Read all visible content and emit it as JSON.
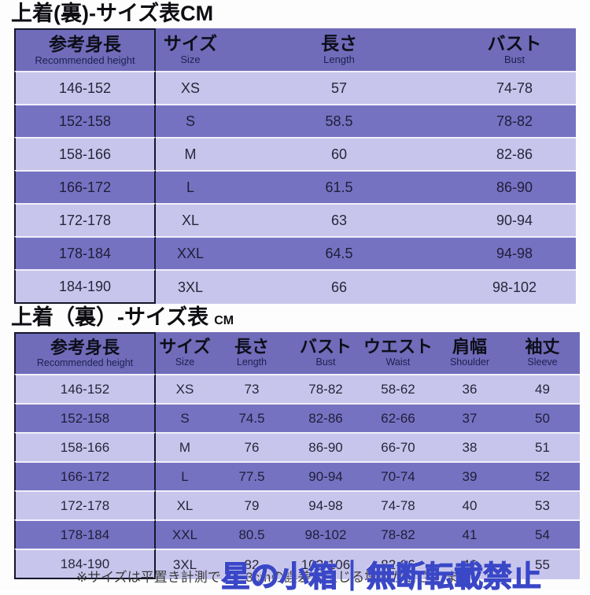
{
  "table1": {
    "title": "上着(裏)-サイズ表CM",
    "columns": [
      {
        "ja": "参考身長",
        "en": "Recommended height"
      },
      {
        "ja": "サイズ",
        "en": "Size"
      },
      {
        "ja": "長さ",
        "en": "Length"
      },
      {
        "ja": "バスト",
        "en": "Bust"
      }
    ],
    "rows": [
      [
        "146-152",
        "XS",
        "57",
        "74-78"
      ],
      [
        "152-158",
        "S",
        "58.5",
        "78-82"
      ],
      [
        "158-166",
        "M",
        "60",
        "82-86"
      ],
      [
        "166-172",
        "L",
        "61.5",
        "86-90"
      ],
      [
        "172-178",
        "XL",
        "63",
        "90-94"
      ],
      [
        "178-184",
        "XXL",
        "64.5",
        "94-98"
      ],
      [
        "184-190",
        "3XL",
        "66",
        "98-102"
      ]
    ]
  },
  "table2": {
    "title": "上着（裏）-サイズ表",
    "title_unit": "CM",
    "columns": [
      {
        "ja": "参考身長",
        "en": "Recommended height"
      },
      {
        "ja": "サイズ",
        "en": "Size"
      },
      {
        "ja": "長さ",
        "en": "Length"
      },
      {
        "ja": "バスト",
        "en": "Bust"
      },
      {
        "ja": "ウエスト",
        "en": "Waist"
      },
      {
        "ja": "肩幅",
        "en": "Shoulder"
      },
      {
        "ja": "袖丈",
        "en": "Sleeve"
      }
    ],
    "rows": [
      [
        "146-152",
        "XS",
        "73",
        "78-82",
        "58-62",
        "36",
        "49"
      ],
      [
        "152-158",
        "S",
        "74.5",
        "82-86",
        "62-66",
        "37",
        "50"
      ],
      [
        "158-166",
        "M",
        "76",
        "86-90",
        "66-70",
        "38",
        "51"
      ],
      [
        "166-172",
        "L",
        "77.5",
        "90-94",
        "70-74",
        "39",
        "52"
      ],
      [
        "172-178",
        "XL",
        "79",
        "94-98",
        "74-78",
        "40",
        "53"
      ],
      [
        "178-184",
        "XXL",
        "80.5",
        "98-102",
        "78-82",
        "41",
        "54"
      ],
      [
        "184-190",
        "3XL",
        "82",
        "102-106",
        "82-86",
        "42",
        "55"
      ]
    ]
  },
  "footer": {
    "note": "※サイズは平置き計測で、1-3cmの誤差が生じる場合がございます",
    "watermark": "星の小箱｜無断転載禁止"
  },
  "colors": {
    "header_bg": "#706cba",
    "row_dark": "#7672c2",
    "row_light": "#c8c5ec",
    "border_black": "#15152a",
    "watermark_blue": "#3a47c7"
  }
}
